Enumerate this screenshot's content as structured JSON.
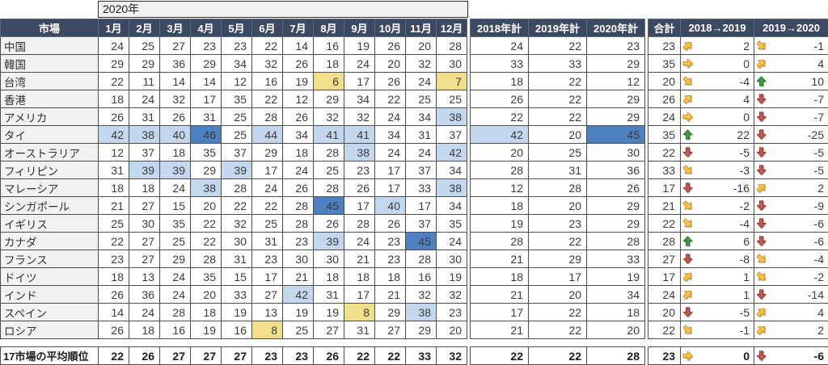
{
  "title_year": "2020年",
  "columns": {
    "market": "市場",
    "months": [
      "1月",
      "2月",
      "3月",
      "4月",
      "5月",
      "6月",
      "7月",
      "8月",
      "9月",
      "10月",
      "11月",
      "12月"
    ],
    "totals": [
      "2018年計",
      "2019年計",
      "2020年計"
    ],
    "sum": "合計",
    "changes": [
      "2018→2019",
      "2019→2020"
    ]
  },
  "colors": {
    "header_bg": "#3C4962",
    "header_border": "#5e6a82",
    "grid_border": "#4d4d4d",
    "label_bg": "#F2F2F2",
    "hl_light_blue": "#C3D7EE",
    "hl_medium_blue": "#4C80C1",
    "hl_yellow": "#F2DF8A",
    "arrow_yellow": "#FFC53C",
    "arrow_yellow_dark": "#D98E26",
    "arrow_green": "#3F9B3C",
    "arrow_green_dark": "#26702B",
    "arrow_red": "#C95450",
    "arrow_red_dark": "#8E3431"
  },
  "rows": [
    {
      "market": "中国",
      "months": [
        24,
        25,
        27,
        23,
        23,
        22,
        14,
        16,
        19,
        26,
        20,
        28
      ],
      "mhl": {},
      "totals": [
        24,
        22,
        23
      ],
      "thl": {},
      "sum": 23,
      "change1": {
        "dir": "ne",
        "value": 2
      },
      "change2": {
        "dir": "se",
        "value": -1
      }
    },
    {
      "market": "韓国",
      "months": [
        29,
        29,
        36,
        29,
        34,
        32,
        26,
        18,
        24,
        20,
        32,
        30
      ],
      "mhl": {},
      "totals": [
        33,
        33,
        29
      ],
      "thl": {},
      "sum": 35,
      "change1": {
        "dir": "right",
        "value": 0
      },
      "change2": {
        "dir": "ne",
        "value": 4
      }
    },
    {
      "market": "台湾",
      "months": [
        22,
        11,
        14,
        14,
        12,
        16,
        19,
        6,
        17,
        26,
        24,
        7
      ],
      "mhl": {
        "7": "y",
        "11": "y"
      },
      "totals": [
        18,
        22,
        12
      ],
      "thl": {},
      "sum": 20,
      "change1": {
        "dir": "se",
        "value": -4
      },
      "change2": {
        "dir": "up",
        "value": 10
      }
    },
    {
      "market": "香港",
      "months": [
        18,
        24,
        32,
        17,
        35,
        22,
        12,
        29,
        34,
        22,
        25,
        25
      ],
      "mhl": {},
      "totals": [
        26,
        22,
        29
      ],
      "thl": {},
      "sum": 26,
      "change1": {
        "dir": "ne",
        "value": 4
      },
      "change2": {
        "dir": "down",
        "value": -7
      }
    },
    {
      "market": "アメリカ",
      "months": [
        26,
        31,
        26,
        31,
        25,
        28,
        26,
        32,
        32,
        24,
        34,
        38
      ],
      "mhl": {
        "11": "lb"
      },
      "totals": [
        22,
        22,
        29
      ],
      "thl": {},
      "sum": 24,
      "change1": {
        "dir": "right",
        "value": 0
      },
      "change2": {
        "dir": "down",
        "value": -7
      }
    },
    {
      "market": "タイ",
      "months": [
        42,
        38,
        40,
        46,
        25,
        44,
        34,
        41,
        41,
        34,
        31,
        37
      ],
      "mhl": {
        "0": "lb",
        "1": "lb",
        "2": "lb",
        "3": "mb",
        "5": "lb",
        "7": "lb",
        "8": "lb"
      },
      "totals": [
        42,
        20,
        45
      ],
      "thl": {
        "0": "lb",
        "2": "mb"
      },
      "sum": 35,
      "change1": {
        "dir": "up",
        "value": 22
      },
      "change2": {
        "dir": "down",
        "value": -25
      }
    },
    {
      "market": "オーストラリア",
      "months": [
        12,
        37,
        18,
        35,
        37,
        29,
        18,
        28,
        38,
        24,
        24,
        42
      ],
      "mhl": {
        "8": "lb",
        "11": "lb"
      },
      "totals": [
        20,
        25,
        30
      ],
      "thl": {},
      "sum": 22,
      "change1": {
        "dir": "down",
        "value": -5
      },
      "change2": {
        "dir": "down",
        "value": -5
      }
    },
    {
      "market": "フィリピン",
      "months": [
        31,
        39,
        39,
        29,
        39,
        17,
        24,
        25,
        23,
        17,
        37,
        34
      ],
      "mhl": {
        "1": "lb",
        "2": "lb",
        "4": "lb"
      },
      "totals": [
        28,
        31,
        36
      ],
      "thl": {},
      "sum": 33,
      "change1": {
        "dir": "se",
        "value": -3
      },
      "change2": {
        "dir": "down",
        "value": -5
      }
    },
    {
      "market": "マレーシア",
      "months": [
        18,
        18,
        24,
        38,
        28,
        24,
        26,
        28,
        26,
        17,
        33,
        38
      ],
      "mhl": {
        "3": "lb",
        "11": "lb"
      },
      "totals": [
        12,
        28,
        26
      ],
      "thl": {},
      "sum": 17,
      "change1": {
        "dir": "down",
        "value": -16
      },
      "change2": {
        "dir": "ne",
        "value": 2
      }
    },
    {
      "market": "シンガポール",
      "months": [
        21,
        27,
        15,
        20,
        22,
        22,
        28,
        45,
        17,
        40,
        17,
        34
      ],
      "mhl": {
        "7": "mb",
        "9": "lb"
      },
      "totals": [
        18,
        20,
        29
      ],
      "thl": {},
      "sum": 21,
      "change1": {
        "dir": "se",
        "value": -2
      },
      "change2": {
        "dir": "down",
        "value": -9
      }
    },
    {
      "market": "イギリス",
      "months": [
        25,
        30,
        35,
        22,
        32,
        25,
        28,
        26,
        28,
        26,
        37,
        35
      ],
      "mhl": {},
      "totals": [
        19,
        23,
        29
      ],
      "thl": {},
      "sum": 22,
      "change1": {
        "dir": "se",
        "value": -4
      },
      "change2": {
        "dir": "down",
        "value": -6
      }
    },
    {
      "market": "カナダ",
      "months": [
        22,
        27,
        25,
        22,
        30,
        31,
        23,
        39,
        24,
        23,
        45,
        24
      ],
      "mhl": {
        "7": "lb",
        "10": "mb"
      },
      "totals": [
        28,
        22,
        28
      ],
      "thl": {},
      "sum": 28,
      "change1": {
        "dir": "up",
        "value": 6
      },
      "change2": {
        "dir": "down",
        "value": -6
      }
    },
    {
      "market": "フランス",
      "months": [
        23,
        27,
        29,
        28,
        31,
        23,
        30,
        30,
        21,
        23,
        28,
        30
      ],
      "mhl": {},
      "totals": [
        21,
        29,
        33
      ],
      "thl": {},
      "sum": 27,
      "change1": {
        "dir": "down",
        "value": -8
      },
      "change2": {
        "dir": "se",
        "value": -4
      }
    },
    {
      "market": "ドイツ",
      "months": [
        18,
        13,
        24,
        35,
        15,
        17,
        21,
        18,
        18,
        18,
        16,
        19
      ],
      "mhl": {},
      "totals": [
        18,
        17,
        19
      ],
      "thl": {},
      "sum": 17,
      "change1": {
        "dir": "ne",
        "value": 1
      },
      "change2": {
        "dir": "se",
        "value": -2
      }
    },
    {
      "market": "インド",
      "months": [
        26,
        36,
        24,
        20,
        33,
        27,
        42,
        31,
        17,
        21,
        32,
        32
      ],
      "mhl": {
        "6": "lb"
      },
      "totals": [
        21,
        20,
        34
      ],
      "thl": {},
      "sum": 24,
      "change1": {
        "dir": "ne",
        "value": 1
      },
      "change2": {
        "dir": "down",
        "value": -14
      }
    },
    {
      "market": "スペイン",
      "months": [
        14,
        24,
        28,
        18,
        19,
        13,
        19,
        19,
        8,
        29,
        38,
        23
      ],
      "mhl": {
        "8": "y",
        "10": "lb"
      },
      "totals": [
        17,
        22,
        18
      ],
      "thl": {},
      "sum": 20,
      "change1": {
        "dir": "down",
        "value": -5
      },
      "change2": {
        "dir": "ne",
        "value": 4
      }
    },
    {
      "market": "ロシア",
      "months": [
        26,
        18,
        16,
        19,
        16,
        8,
        25,
        27,
        31,
        27,
        29,
        20
      ],
      "mhl": {
        "5": "y"
      },
      "totals": [
        21,
        22,
        20
      ],
      "thl": {},
      "sum": 22,
      "change1": {
        "dir": "se",
        "value": -1
      },
      "change2": {
        "dir": "ne",
        "value": 2
      }
    }
  ],
  "footer": {
    "label": "17市場の平均順位",
    "months": [
      22,
      26,
      27,
      27,
      27,
      23,
      23,
      26,
      22,
      22,
      33,
      32
    ],
    "totals": [
      22,
      22,
      28
    ],
    "sum": 23,
    "change1": {
      "dir": "right",
      "value": 0
    },
    "change2": {
      "dir": "down",
      "value": -6
    }
  }
}
